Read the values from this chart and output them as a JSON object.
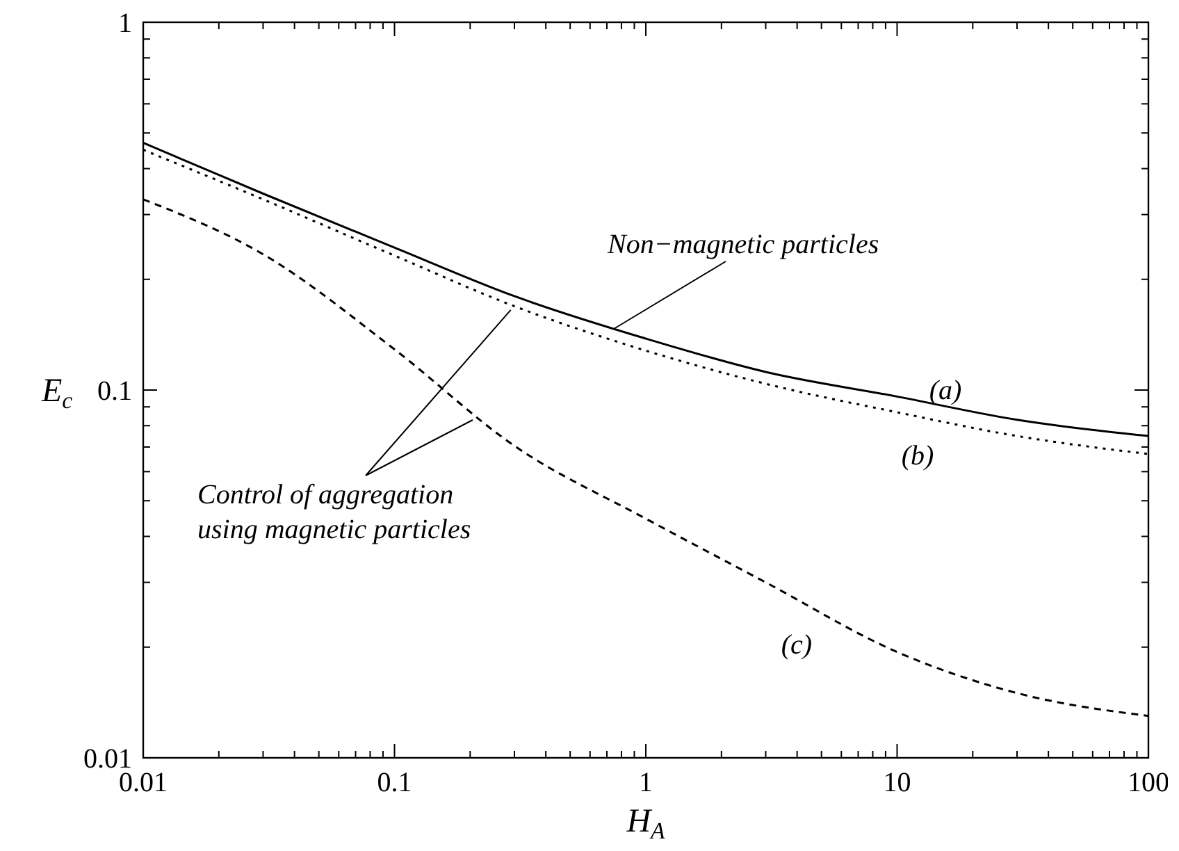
{
  "chart_data": {
    "type": "line",
    "xlabel": "H$_{A}$",
    "ylabel": "E$_{c}$",
    "log": "xy",
    "marker": "none",
    "x": [
      0.01,
      0.03,
      0.1,
      0.3,
      1,
      3,
      10,
      30,
      100
    ],
    "xlim": [
      0.01,
      100
    ],
    "ylim": [
      0.01,
      1
    ],
    "xticks": [
      0.01,
      {
        "value": 0.02,
        "label": null
      },
      {
        "value": 0.03,
        "label": null
      },
      {
        "value": 0.04,
        "label": null
      },
      {
        "value": 0.05,
        "label": null
      },
      {
        "value": 0.06,
        "label": null
      },
      {
        "value": 0.07,
        "label": null
      },
      {
        "value": 0.08,
        "label": null
      },
      {
        "value": 0.09,
        "label": null
      },
      0.1,
      {
        "value": 0.2,
        "label": null
      },
      {
        "value": 0.3,
        "label": null
      },
      {
        "value": 0.4,
        "label": null
      },
      {
        "value": 0.5,
        "label": null
      },
      {
        "value": 0.6,
        "label": null
      },
      {
        "value": 0.7,
        "label": null
      },
      {
        "value": 0.8,
        "label": null
      },
      {
        "value": 0.9,
        "label": null
      },
      1,
      {
        "value": 2,
        "label": null
      },
      {
        "value": 3,
        "label": null
      },
      {
        "value": 4,
        "label": null
      },
      {
        "value": 5,
        "label": null
      },
      {
        "value": 6,
        "label": null
      },
      {
        "value": 7,
        "label": null
      },
      {
        "value": 8,
        "label": null
      },
      {
        "value": 9,
        "label": null
      },
      10,
      {
        "value": 20,
        "label": null
      },
      {
        "value": 30,
        "label": null
      },
      {
        "value": 40,
        "label": null
      },
      {
        "value": 50,
        "label": null
      },
      {
        "value": 60,
        "label": null
      },
      {
        "value": 70,
        "label": null
      },
      {
        "value": 80,
        "label": null
      },
      {
        "value": 90,
        "label": null
      },
      100
    ],
    "yticks": [
      0.01,
      {
        "value": 0.02,
        "label": null
      },
      {
        "value": 0.03,
        "label": null
      },
      {
        "value": 0.04,
        "label": null
      },
      {
        "value": 0.05,
        "label": null
      },
      {
        "value": 0.06,
        "label": null
      },
      {
        "value": 0.07,
        "label": null
      },
      {
        "value": 0.08,
        "label": null
      },
      {
        "value": 0.09,
        "label": null
      },
      0.1,
      {
        "value": 0.2,
        "label": null
      },
      {
        "value": 0.3,
        "label": null
      },
      {
        "value": 0.4,
        "label": null
      },
      {
        "value": 0.5,
        "label": null
      },
      {
        "value": 0.6,
        "label": null
      },
      {
        "value": 0.7,
        "label": null
      },
      {
        "value": 0.8,
        "label": null
      },
      {
        "value": 0.9,
        "label": null
      },
      1
    ],
    "series": [
      {
        "color": "#000000",
        "line_style": "solid",
        "values": [
          0.47,
          0.342,
          0.244,
          0.18,
          0.138,
          0.112,
          0.096,
          0.083,
          0.075
        ]
      },
      {
        "color": "#000000",
        "line_style": "dotted",
        "values": [
          0.45,
          0.33,
          0.232,
          0.169,
          0.128,
          0.104,
          0.087,
          0.075,
          0.067
        ]
      },
      {
        "color": "#000000",
        "line_style": "dashed",
        "values": [
          0.33,
          0.234,
          0.129,
          0.0705,
          0.0447,
          0.03,
          0.0194,
          0.015,
          0.013
        ]
      }
    ],
    "annotations": [
      {
        "text": "Non−magnetic particles",
        "x": 0.75,
        "y": 0.147
      },
      {
        "text": "Control of aggregation using magnetic particles",
        "x": 0.29,
        "y": 0.165
      },
      "(a)",
      "(b)",
      "(c)"
    ]
  }
}
